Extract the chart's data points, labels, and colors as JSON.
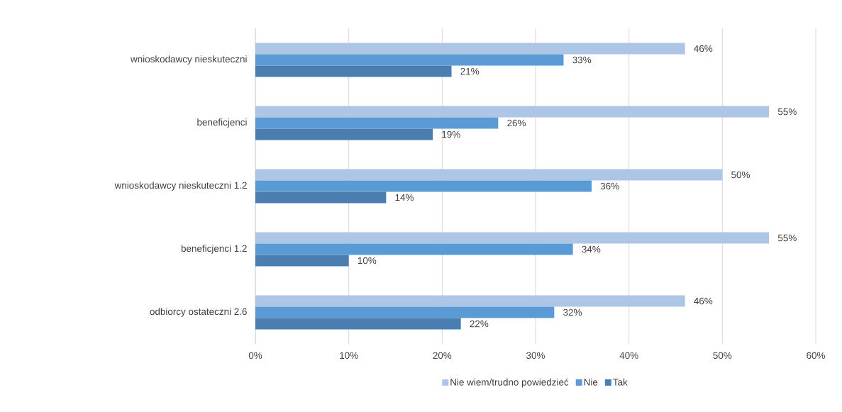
{
  "chart_data": {
    "type": "bar",
    "orientation": "horizontal",
    "categories": [
      "wnioskodawcy nieskuteczni",
      "beneficjenci",
      "wnioskodawcy nieskuteczni 1.2",
      "beneficjenci 1.2",
      "odbiorcy ostateczni 2.6"
    ],
    "series": [
      {
        "name": "Nie wiem/trudno powiedzieć",
        "color": "#adc6e5",
        "values": [
          46,
          55,
          50,
          55,
          46
        ],
        "value_labels": [
          "46%",
          "55%",
          "50%",
          "55%",
          "46%"
        ]
      },
      {
        "name": "Nie",
        "color": "#5b9bd5",
        "values": [
          33,
          26,
          36,
          34,
          32
        ],
        "value_labels": [
          "33%",
          "26%",
          "36%",
          "34%",
          "32%"
        ]
      },
      {
        "name": "Tak",
        "color": "#4a7eb0",
        "values": [
          21,
          19,
          14,
          10,
          22
        ],
        "value_labels": [
          "21%",
          "19%",
          "14%",
          "10%",
          "22%"
        ]
      }
    ],
    "xlim": [
      0,
      60
    ],
    "xticks": [
      {
        "value": 0,
        "label": "0%"
      },
      {
        "value": 10,
        "label": "10%"
      },
      {
        "value": 20,
        "label": "20%"
      },
      {
        "value": 30,
        "label": "30%"
      },
      {
        "value": 40,
        "label": "40%"
      },
      {
        "value": 50,
        "label": "50%"
      },
      {
        "value": 60,
        "label": "60%"
      }
    ],
    "grid": "x",
    "legend": "bottom"
  }
}
